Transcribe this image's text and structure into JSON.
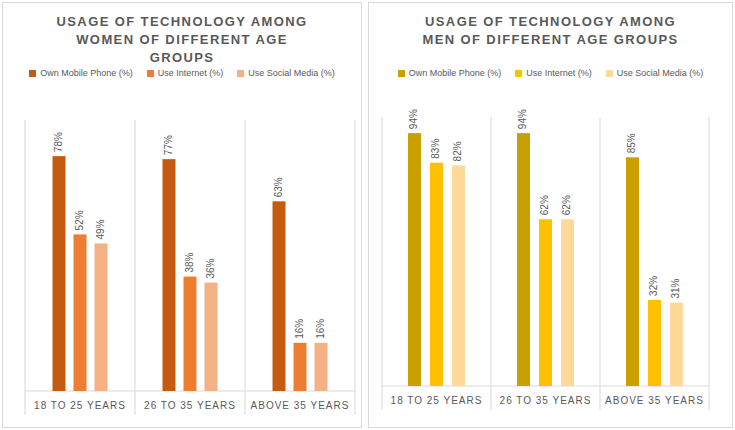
{
  "chart_data": [
    {
      "type": "bar",
      "title": "USAGE OF TECHNOLOGY AMONG WOMEN OF DIFFERENT AGE GROUPS",
      "categories": [
        "18 TO 25 YEARS",
        "26 TO 35 YEARS",
        "ABOVE 35 YEARS"
      ],
      "series": [
        {
          "name": "Own Mobile Phone (%)",
          "color": "#c55a11",
          "values": [
            78,
            77,
            63
          ],
          "value_labels": [
            "78%",
            "77%",
            "63%"
          ]
        },
        {
          "name": "Use Internet (%)",
          "color": "#ed7d31",
          "values": [
            52,
            38,
            16
          ],
          "value_labels": [
            "52%",
            "38%",
            "16%"
          ]
        },
        {
          "name": "Use Social Media (%)",
          "color": "#f4b183",
          "values": [
            49,
            36,
            16
          ],
          "value_labels": [
            "49%",
            "36%",
            "16%"
          ]
        }
      ],
      "ylim": [
        0,
        90
      ],
      "data_labels": true,
      "tick_labels": "x",
      "grid": false,
      "legend": "top"
    },
    {
      "type": "bar",
      "title": "USAGE OF TECHNOLOGY AMONG MEN OF DIFFERENT AGE GROUPS",
      "categories": [
        "18 TO 25 YEARS",
        "26 TO 35 YEARS",
        "ABOVE 35 YEARS"
      ],
      "series": [
        {
          "name": "Own Mobile Phone (%)",
          "color": "#c9a000",
          "values": [
            94,
            94,
            85
          ],
          "value_labels": [
            "94%",
            "94%",
            "85%"
          ]
        },
        {
          "name": "Use Internet (%)",
          "color": "#ffc000",
          "values": [
            83,
            62,
            32
          ],
          "value_labels": [
            "83%",
            "62%",
            "32%"
          ]
        },
        {
          "name": "Use Social Media (%)",
          "color": "#ffd999",
          "values": [
            82,
            62,
            31
          ],
          "value_labels": [
            "82%",
            "62%",
            "31%"
          ]
        }
      ],
      "ylim": [
        0,
        100
      ],
      "data_labels": true,
      "tick_labels": "x",
      "grid": false,
      "legend": "top"
    }
  ]
}
